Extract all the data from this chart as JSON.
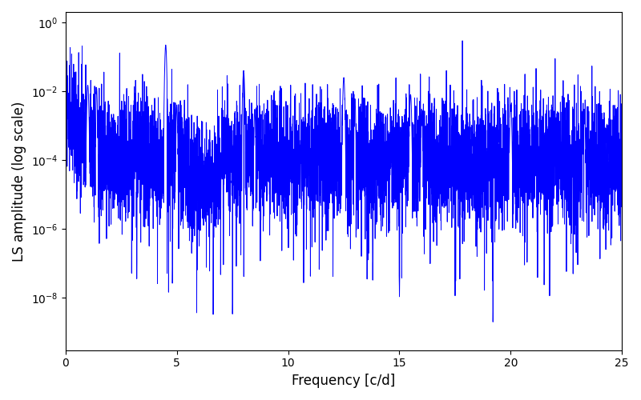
{
  "line_color": "#0000FF",
  "line_width": 0.7,
  "xlabel": "Frequency [c/d]",
  "ylabel": "LS amplitude (log scale)",
  "xlim": [
    0,
    25
  ],
  "ylim_bottom": 3e-10,
  "ylim_top": 2.0,
  "freq_max": 25,
  "n_points": 6000,
  "seed": 7,
  "figsize": [
    8.0,
    5.0
  ],
  "dpi": 100
}
